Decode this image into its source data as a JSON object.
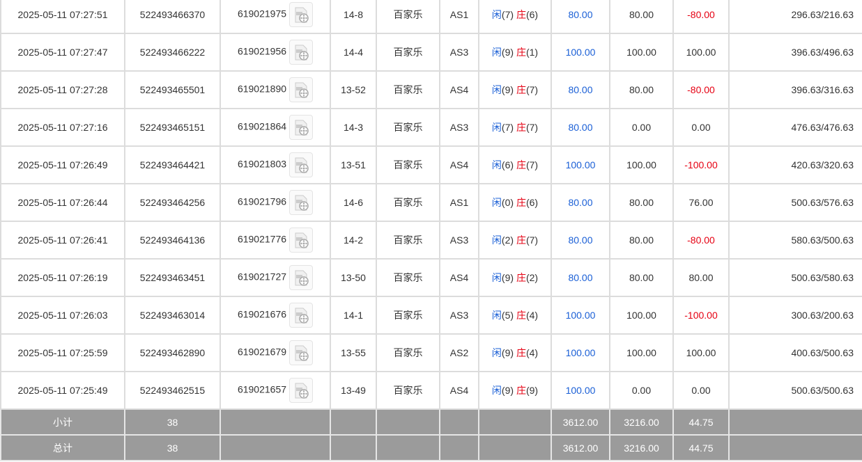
{
  "colors": {
    "player": "#1a5fd6",
    "banker": "#e60012",
    "footer_bg": "#9b9b9b"
  },
  "labels": {
    "player": "闲",
    "banker": "庄"
  },
  "rows": [
    {
      "time": "2025-05-11 07:27:51",
      "bet_no": "522493466370",
      "round": "619021975",
      "shoe": "14-8",
      "game": "百家乐",
      "table": "AS1",
      "p": "(7)",
      "b": "(6)",
      "bet": "80.00",
      "valid": "80.00",
      "win": "-80.00",
      "balance": "296.63/216.63"
    },
    {
      "time": "2025-05-11 07:27:47",
      "bet_no": "522493466222",
      "round": "619021956",
      "shoe": "14-4",
      "game": "百家乐",
      "table": "AS3",
      "p": "(9)",
      "b": "(1)",
      "bet": "100.00",
      "valid": "100.00",
      "win": "100.00",
      "balance": "396.63/496.63"
    },
    {
      "time": "2025-05-11 07:27:28",
      "bet_no": "522493465501",
      "round": "619021890",
      "shoe": "13-52",
      "game": "百家乐",
      "table": "AS4",
      "p": "(9)",
      "b": "(7)",
      "bet": "80.00",
      "valid": "80.00",
      "win": "-80.00",
      "balance": "396.63/316.63"
    },
    {
      "time": "2025-05-11 07:27:16",
      "bet_no": "522493465151",
      "round": "619021864",
      "shoe": "14-3",
      "game": "百家乐",
      "table": "AS3",
      "p": "(7)",
      "b": "(7)",
      "bet": "80.00",
      "valid": "0.00",
      "win": "0.00",
      "balance": "476.63/476.63"
    },
    {
      "time": "2025-05-11 07:26:49",
      "bet_no": "522493464421",
      "round": "619021803",
      "shoe": "13-51",
      "game": "百家乐",
      "table": "AS4",
      "p": "(6)",
      "b": "(7)",
      "bet": "100.00",
      "valid": "100.00",
      "win": "-100.00",
      "balance": "420.63/320.63"
    },
    {
      "time": "2025-05-11 07:26:44",
      "bet_no": "522493464256",
      "round": "619021796",
      "shoe": "14-6",
      "game": "百家乐",
      "table": "AS1",
      "p": "(0)",
      "b": "(6)",
      "bet": "80.00",
      "valid": "80.00",
      "win": "76.00",
      "balance": "500.63/576.63"
    },
    {
      "time": "2025-05-11 07:26:41",
      "bet_no": "522493464136",
      "round": "619021776",
      "shoe": "14-2",
      "game": "百家乐",
      "table": "AS3",
      "p": "(2)",
      "b": "(7)",
      "bet": "80.00",
      "valid": "80.00",
      "win": "-80.00",
      "balance": "580.63/500.63"
    },
    {
      "time": "2025-05-11 07:26:19",
      "bet_no": "522493463451",
      "round": "619021727",
      "shoe": "13-50",
      "game": "百家乐",
      "table": "AS4",
      "p": "(9)",
      "b": "(2)",
      "bet": "80.00",
      "valid": "80.00",
      "win": "80.00",
      "balance": "500.63/580.63"
    },
    {
      "time": "2025-05-11 07:26:03",
      "bet_no": "522493463014",
      "round": "619021676",
      "shoe": "14-1",
      "game": "百家乐",
      "table": "AS3",
      "p": "(5)",
      "b": "(4)",
      "bet": "100.00",
      "valid": "100.00",
      "win": "-100.00",
      "balance": "300.63/200.63"
    },
    {
      "time": "2025-05-11 07:25:59",
      "bet_no": "522493462890",
      "round": "619021679",
      "shoe": "13-55",
      "game": "百家乐",
      "table": "AS2",
      "p": "(9)",
      "b": "(4)",
      "bet": "100.00",
      "valid": "100.00",
      "win": "100.00",
      "balance": "400.63/500.63"
    },
    {
      "time": "2025-05-11 07:25:49",
      "bet_no": "522493462515",
      "round": "619021657",
      "shoe": "13-49",
      "game": "百家乐",
      "table": "AS4",
      "p": "(9)",
      "b": "(9)",
      "bet": "100.00",
      "valid": "0.00",
      "win": "0.00",
      "balance": "500.63/500.63"
    }
  ],
  "footer": [
    {
      "label": "小计",
      "count": "38",
      "bet": "3612.00",
      "valid": "3216.00",
      "win": "44.75"
    },
    {
      "label": "总计",
      "count": "38",
      "bet": "3612.00",
      "valid": "3216.00",
      "win": "44.75"
    }
  ]
}
